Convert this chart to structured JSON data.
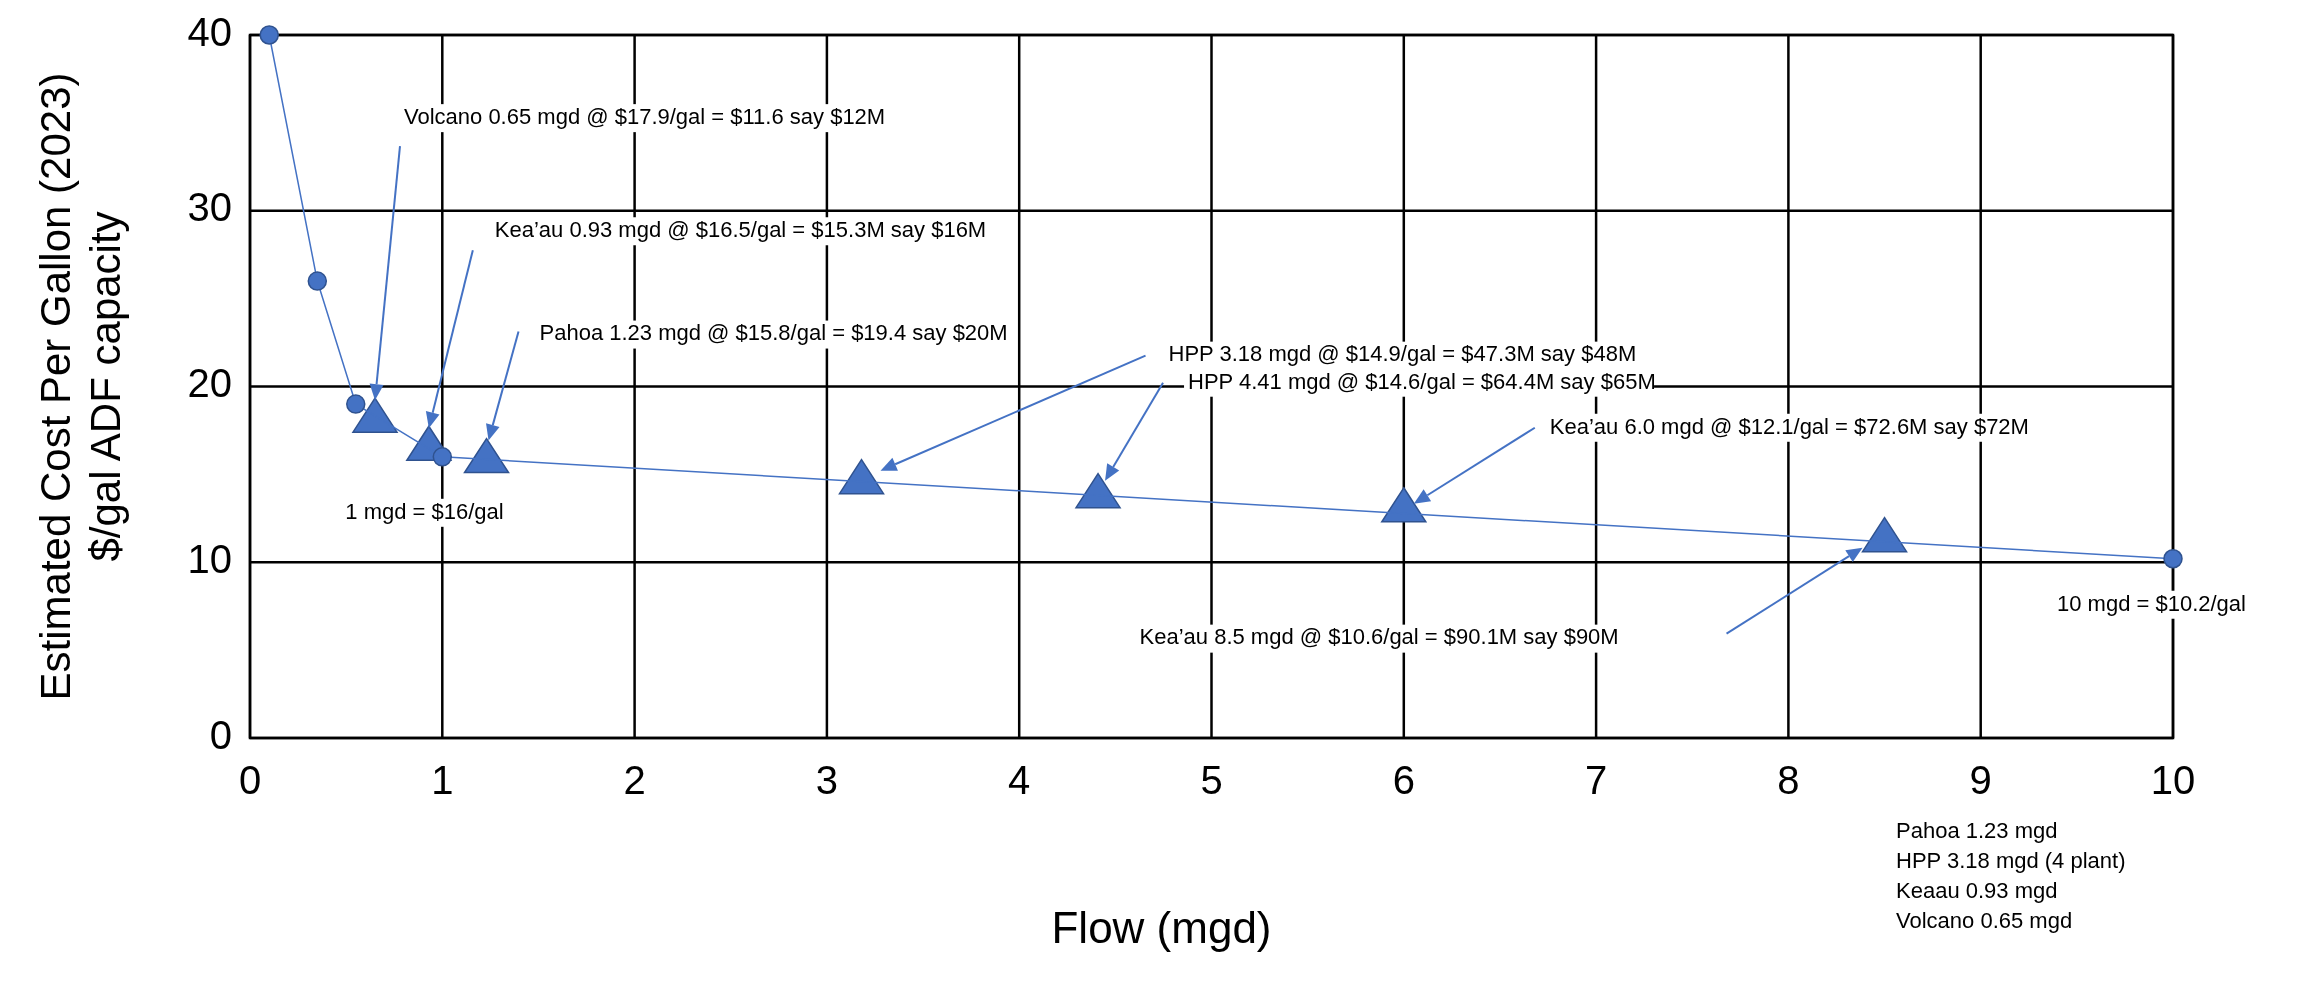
{
  "chart_data": {
    "type": "scatter",
    "xlabel": "Flow (mgd)",
    "ylabel": "Estimated Cost Per Gallon (2023)\n$/gal ADF capacity",
    "xlim": [
      0,
      10
    ],
    "xticks": [
      0,
      1,
      2,
      3,
      4,
      5,
      6,
      7,
      8,
      9,
      10
    ],
    "ylim": [
      0,
      40
    ],
    "yticks": [
      0,
      10,
      20,
      30,
      40
    ],
    "grid": true,
    "series": [
      {
        "type": "line",
        "marker": "circle",
        "color": "#4472c4",
        "x": [
          0.1,
          0.35,
          0.55,
          1,
          10
        ],
        "values": [
          40,
          26,
          19,
          16,
          10.2
        ]
      },
      {
        "marker": "triangle",
        "color": "#4472c4",
        "x": [
          0.65,
          0.93,
          1.23,
          3.18,
          4.41,
          6.0,
          8.5
        ],
        "values": [
          18.2,
          16.6,
          15.9,
          14.7,
          13.9,
          13.1,
          11.4
        ]
      }
    ],
    "annotations": [
      "Volcano 0.65 mgd @ $17.9/gal = $11.6 say $12M",
      "Kea’au 0.93 mgd @ $16.5/gal = $15.3M say $16M",
      "Pahoa 1.23 mgd @ $15.8/gal = $19.4 say $20M",
      "HPP 3.18 mgd @ $14.9/gal = $47.3M say $48M",
      "HPP 4.41 mgd @ $14.6/gal = $64.4M say $65M",
      "Kea’au 6.0 mgd @ $12.1/gal = $72.6M say $72M",
      "Kea’au 8.5 mgd @ $10.6/gal = $90.1M say $90M",
      {
        "text": "1 mgd = $16/gal",
        "x": 1,
        "y": 16
      },
      {
        "text": "10 mgd = $10.2/gal",
        "x": 10,
        "y": 10.2
      },
      "Pahoa 1.23 mgd",
      "HPP 3.18 mgd (4 plant)",
      "Keaau 0.93 mgd",
      "Volcano 0.65 mgd"
    ]
  }
}
